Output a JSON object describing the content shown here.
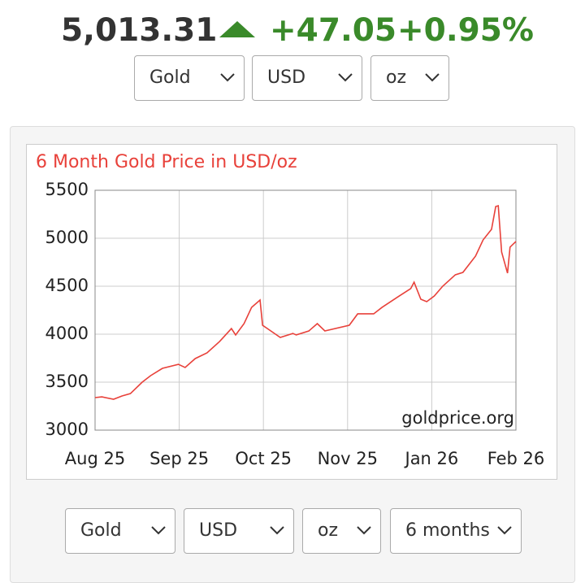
{
  "header": {
    "price": "5,013.31",
    "change": "+47.05",
    "percent": "+0.95%"
  },
  "top_selects": [
    "Gold",
    "USD",
    "oz"
  ],
  "chart_data": {
    "type": "line",
    "title": "6 Month Gold Price in USD/oz",
    "watermark": "goldprice.org",
    "color": "#e8413a",
    "grid": true,
    "x": [
      0,
      0.08,
      0.22,
      0.32,
      0.42,
      0.56,
      0.66,
      0.8,
      0.99,
      1.07,
      1.19,
      1.33,
      1.48,
      1.62,
      1.67,
      1.77,
      1.86,
      1.96,
      1.99,
      2.06,
      2.2,
      2.35,
      2.39,
      2.54,
      2.64,
      2.73,
      3.02,
      3.12,
      3.31,
      3.41,
      3.6,
      3.75,
      3.79,
      3.87,
      3.94,
      4.03,
      4.13,
      4.28,
      4.37,
      4.52,
      4.61,
      4.71,
      4.76,
      4.79,
      4.83,
      4.9,
      4.93,
      4.97,
      5
    ],
    "values": [
      3339,
      3347,
      3322,
      3356,
      3381,
      3500,
      3568,
      3644,
      3686,
      3653,
      3746,
      3805,
      3924,
      4059,
      3992,
      4110,
      4280,
      4356,
      4093,
      4051,
      3966,
      4008,
      3992,
      4034,
      4110,
      4034,
      4093,
      4212,
      4212,
      4280,
      4390,
      4475,
      4542,
      4364,
      4339,
      4398,
      4500,
      4619,
      4644,
      4814,
      4983,
      5093,
      5331,
      5339,
      4856,
      4636,
      4907,
      4941,
      4966
    ],
    "xlim": [
      0,
      5
    ],
    "xticks": [
      {
        "value": 0,
        "label": "Aug 25"
      },
      {
        "value": 1,
        "label": "Sep 25"
      },
      {
        "value": 2,
        "label": "Oct 25"
      },
      {
        "value": 3,
        "label": "Nov 25"
      },
      {
        "value": 4,
        "label": "Jan 26"
      },
      {
        "value": 5,
        "label": "Feb 26"
      }
    ],
    "ylim": [
      3000,
      5500
    ],
    "yticks": [
      3000,
      3500,
      4000,
      4500,
      5000,
      5500
    ]
  },
  "bottom_selects": [
    "Gold",
    "USD",
    "oz",
    "6 months"
  ]
}
